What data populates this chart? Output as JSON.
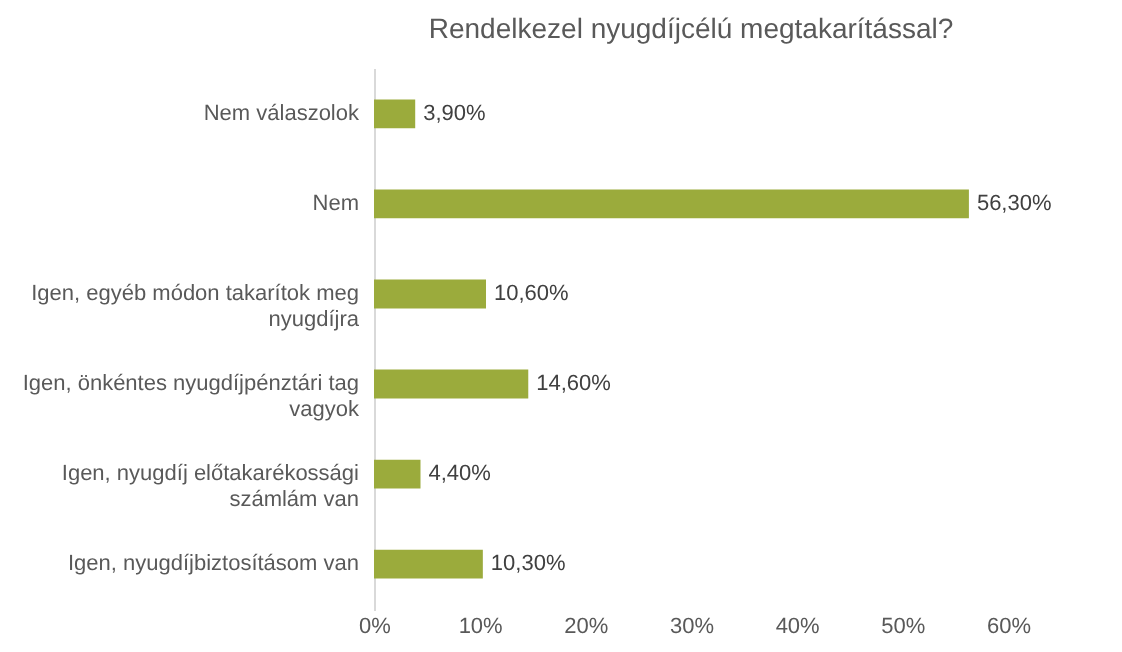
{
  "chart_data": {
    "type": "bar",
    "orientation": "horizontal",
    "title": "Rendelkezel nyugdíjcélú megtakarítással?",
    "categories": [
      "Nem válaszolok",
      "Nem",
      "Igen, egyéb módon takarítok meg nyugdíjra",
      "Igen, önkéntes nyugdíjpénztári tag vagyok",
      "Igen, nyugdíj előtakarékossági számlám van",
      "Igen, nyugdíjbiztosításom van"
    ],
    "values": [
      3.9,
      56.3,
      10.6,
      14.6,
      4.4,
      10.3
    ],
    "value_labels": [
      "3,90%",
      "56,30%",
      "10,60%",
      "14,60%",
      "4,40%",
      "10,30%"
    ],
    "color": "#9bab3c",
    "xlim": [
      0,
      60
    ],
    "xticks": [
      {
        "value": 0,
        "label": "0%"
      },
      {
        "value": 10,
        "label": "10%"
      },
      {
        "value": 20,
        "label": "20%"
      },
      {
        "value": 30,
        "label": "30%"
      },
      {
        "value": 40,
        "label": "40%"
      },
      {
        "value": 50,
        "label": "50%"
      },
      {
        "value": 60,
        "label": "60%"
      }
    ],
    "grid": false
  }
}
